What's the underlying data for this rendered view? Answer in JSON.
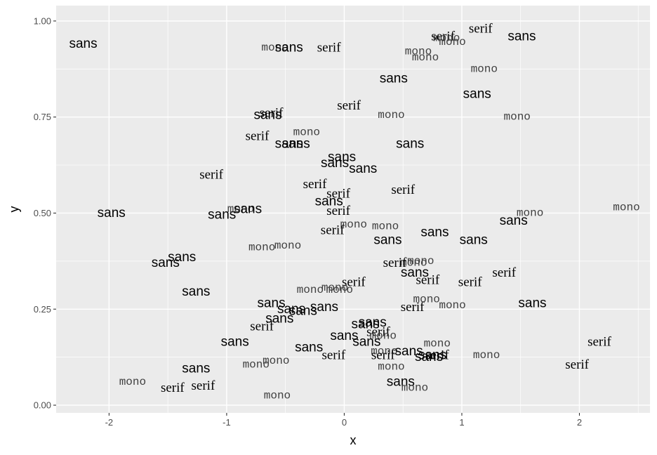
{
  "chart_data": {
    "type": "scatter",
    "title": "",
    "xlabel": "x",
    "ylabel": "y",
    "xlim": [
      -2.45,
      2.6
    ],
    "ylim": [
      -0.02,
      1.04
    ],
    "x_ticks": [
      -2,
      -1,
      0,
      1,
      2
    ],
    "x_tick_labels": [
      "-2",
      "-1",
      "0",
      "1",
      "2"
    ],
    "y_ticks": [
      0.0,
      0.25,
      0.5,
      0.75,
      1.0
    ],
    "y_tick_labels": [
      "0.00",
      "0.25",
      "0.50",
      "0.75",
      "1.00"
    ],
    "grid": true,
    "legend": "none",
    "colors": {
      "panel": "#ebebeb",
      "grid": "#ffffff",
      "text": "#000000",
      "mono_text": "#404040"
    },
    "points": [
      {
        "x": -2.22,
        "y": 0.94,
        "label": "sans"
      },
      {
        "x": -0.59,
        "y": 0.93,
        "label": "mono"
      },
      {
        "x": -0.47,
        "y": 0.93,
        "label": "sans"
      },
      {
        "x": -0.13,
        "y": 0.93,
        "label": "serif"
      },
      {
        "x": 1.16,
        "y": 0.98,
        "label": "serif"
      },
      {
        "x": 0.84,
        "y": 0.96,
        "label": "serif"
      },
      {
        "x": 0.87,
        "y": 0.955,
        "label": "mono"
      },
      {
        "x": 0.92,
        "y": 0.945,
        "label": "mono"
      },
      {
        "x": 1.51,
        "y": 0.96,
        "label": "sans"
      },
      {
        "x": 0.63,
        "y": 0.92,
        "label": "mono"
      },
      {
        "x": 0.69,
        "y": 0.905,
        "label": "mono"
      },
      {
        "x": 1.19,
        "y": 0.875,
        "label": "mono"
      },
      {
        "x": 0.42,
        "y": 0.85,
        "label": "sans"
      },
      {
        "x": 1.13,
        "y": 0.81,
        "label": "sans"
      },
      {
        "x": 0.04,
        "y": 0.78,
        "label": "serif"
      },
      {
        "x": -0.62,
        "y": 0.76,
        "label": "serif"
      },
      {
        "x": -0.65,
        "y": 0.755,
        "label": "sans"
      },
      {
        "x": 0.4,
        "y": 0.755,
        "label": "mono"
      },
      {
        "x": 1.47,
        "y": 0.75,
        "label": "mono"
      },
      {
        "x": -0.32,
        "y": 0.71,
        "label": "mono"
      },
      {
        "x": -0.74,
        "y": 0.7,
        "label": "serif"
      },
      {
        "x": -0.47,
        "y": 0.68,
        "label": "sans"
      },
      {
        "x": -0.41,
        "y": 0.68,
        "label": "sans"
      },
      {
        "x": 0.56,
        "y": 0.68,
        "label": "sans"
      },
      {
        "x": -1.13,
        "y": 0.6,
        "label": "serif"
      },
      {
        "x": -0.02,
        "y": 0.645,
        "label": "sans"
      },
      {
        "x": -0.08,
        "y": 0.63,
        "label": "sans"
      },
      {
        "x": 0.16,
        "y": 0.615,
        "label": "sans"
      },
      {
        "x": -0.25,
        "y": 0.575,
        "label": "serif"
      },
      {
        "x": -0.05,
        "y": 0.55,
        "label": "serif"
      },
      {
        "x": 0.5,
        "y": 0.56,
        "label": "serif"
      },
      {
        "x": -1.98,
        "y": 0.5,
        "label": "sans"
      },
      {
        "x": -0.88,
        "y": 0.51,
        "label": "mono"
      },
      {
        "x": -0.82,
        "y": 0.51,
        "label": "sans"
      },
      {
        "x": -1.04,
        "y": 0.495,
        "label": "sans"
      },
      {
        "x": -0.13,
        "y": 0.53,
        "label": "sans"
      },
      {
        "x": -0.05,
        "y": 0.505,
        "label": "serif"
      },
      {
        "x": 1.58,
        "y": 0.5,
        "label": "mono"
      },
      {
        "x": 2.4,
        "y": 0.515,
        "label": "mono"
      },
      {
        "x": 1.44,
        "y": 0.48,
        "label": "sans"
      },
      {
        "x": 0.08,
        "y": 0.47,
        "label": "mono"
      },
      {
        "x": 0.35,
        "y": 0.465,
        "label": "mono"
      },
      {
        "x": -0.1,
        "y": 0.455,
        "label": "serif"
      },
      {
        "x": 0.77,
        "y": 0.45,
        "label": "sans"
      },
      {
        "x": 1.1,
        "y": 0.43,
        "label": "sans"
      },
      {
        "x": 0.37,
        "y": 0.43,
        "label": "sans"
      },
      {
        "x": -0.7,
        "y": 0.41,
        "label": "mono"
      },
      {
        "x": -0.48,
        "y": 0.415,
        "label": "mono"
      },
      {
        "x": -1.38,
        "y": 0.385,
        "label": "sans"
      },
      {
        "x": -1.52,
        "y": 0.37,
        "label": "sans"
      },
      {
        "x": 0.65,
        "y": 0.375,
        "label": "mono"
      },
      {
        "x": 0.59,
        "y": 0.37,
        "label": "mono"
      },
      {
        "x": 0.43,
        "y": 0.37,
        "label": "serif"
      },
      {
        "x": 0.6,
        "y": 0.345,
        "label": "sans"
      },
      {
        "x": 1.36,
        "y": 0.345,
        "label": "serif"
      },
      {
        "x": 0.71,
        "y": 0.325,
        "label": "serif"
      },
      {
        "x": 1.07,
        "y": 0.32,
        "label": "serif"
      },
      {
        "x": 0.08,
        "y": 0.32,
        "label": "serif"
      },
      {
        "x": -0.08,
        "y": 0.305,
        "label": "mono"
      },
      {
        "x": -0.29,
        "y": 0.3,
        "label": "mono"
      },
      {
        "x": -0.04,
        "y": 0.3,
        "label": "mono"
      },
      {
        "x": -1.26,
        "y": 0.295,
        "label": "sans"
      },
      {
        "x": 0.7,
        "y": 0.275,
        "label": "mono"
      },
      {
        "x": 0.92,
        "y": 0.26,
        "label": "mono"
      },
      {
        "x": 1.6,
        "y": 0.265,
        "label": "sans"
      },
      {
        "x": -0.62,
        "y": 0.265,
        "label": "sans"
      },
      {
        "x": -0.45,
        "y": 0.25,
        "label": "sans"
      },
      {
        "x": -0.35,
        "y": 0.245,
        "label": "sans"
      },
      {
        "x": -0.17,
        "y": 0.255,
        "label": "sans"
      },
      {
        "x": 0.58,
        "y": 0.255,
        "label": "serif"
      },
      {
        "x": -0.55,
        "y": 0.225,
        "label": "sans"
      },
      {
        "x": 0.24,
        "y": 0.215,
        "label": "sans"
      },
      {
        "x": 0.18,
        "y": 0.21,
        "label": "sans"
      },
      {
        "x": -0.7,
        "y": 0.205,
        "label": "serif"
      },
      {
        "x": 0.29,
        "y": 0.19,
        "label": "serif"
      },
      {
        "x": 0.33,
        "y": 0.18,
        "label": "mono"
      },
      {
        "x": 0.0,
        "y": 0.18,
        "label": "sans"
      },
      {
        "x": 0.19,
        "y": 0.165,
        "label": "sans"
      },
      {
        "x": -0.93,
        "y": 0.165,
        "label": "sans"
      },
      {
        "x": 0.79,
        "y": 0.16,
        "label": "mono"
      },
      {
        "x": 2.17,
        "y": 0.165,
        "label": "serif"
      },
      {
        "x": -0.3,
        "y": 0.15,
        "label": "sans"
      },
      {
        "x": 0.34,
        "y": 0.14,
        "label": "mono"
      },
      {
        "x": 0.55,
        "y": 0.14,
        "label": "sans"
      },
      {
        "x": 0.33,
        "y": 0.13,
        "label": "serif"
      },
      {
        "x": 0.75,
        "y": 0.13,
        "label": "sans"
      },
      {
        "x": 0.79,
        "y": 0.13,
        "label": "serif"
      },
      {
        "x": 0.72,
        "y": 0.125,
        "label": "sans"
      },
      {
        "x": 1.21,
        "y": 0.13,
        "label": "mono"
      },
      {
        "x": -0.09,
        "y": 0.13,
        "label": "serif"
      },
      {
        "x": -0.58,
        "y": 0.115,
        "label": "mono"
      },
      {
        "x": -0.75,
        "y": 0.105,
        "label": "mono"
      },
      {
        "x": 1.98,
        "y": 0.105,
        "label": "serif"
      },
      {
        "x": -1.26,
        "y": 0.095,
        "label": "sans"
      },
      {
        "x": 0.4,
        "y": 0.1,
        "label": "mono"
      },
      {
        "x": -1.8,
        "y": 0.06,
        "label": "mono"
      },
      {
        "x": -1.46,
        "y": 0.045,
        "label": "serif"
      },
      {
        "x": -1.2,
        "y": 0.05,
        "label": "serif"
      },
      {
        "x": 0.48,
        "y": 0.06,
        "label": "sans"
      },
      {
        "x": 0.6,
        "y": 0.045,
        "label": "mono"
      },
      {
        "x": -0.57,
        "y": 0.025,
        "label": "mono"
      }
    ]
  }
}
